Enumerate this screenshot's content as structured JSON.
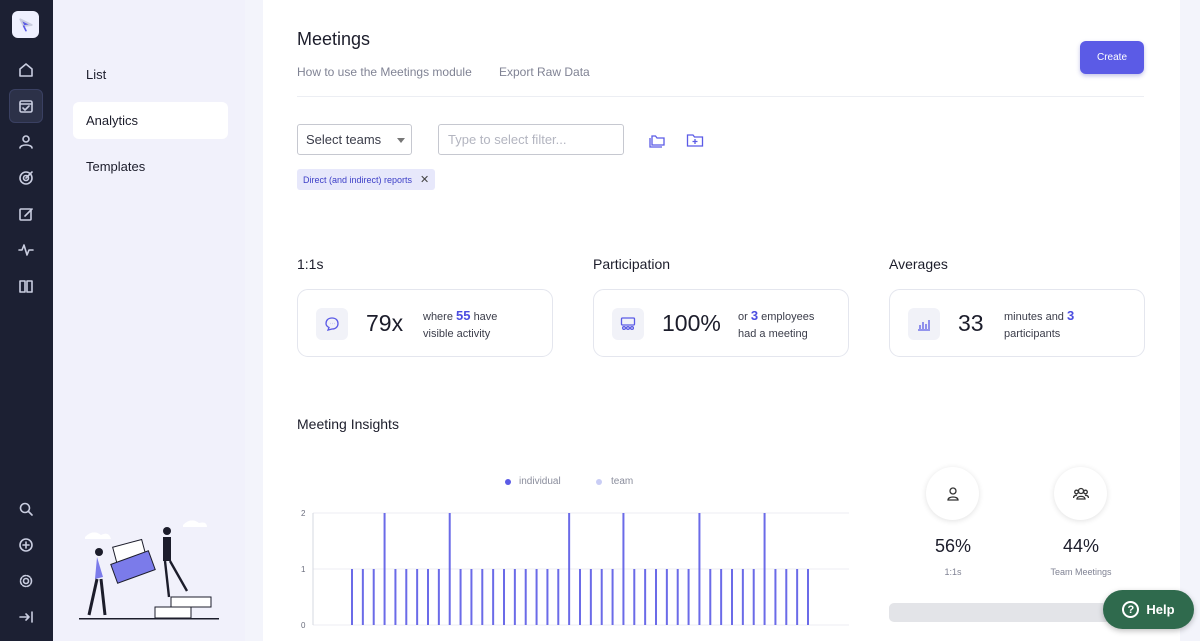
{
  "rail": {
    "items": [
      {
        "name": "home-icon"
      },
      {
        "name": "meetings-icon",
        "active": true
      },
      {
        "name": "people-icon"
      },
      {
        "name": "goals-icon"
      },
      {
        "name": "edit-icon"
      },
      {
        "name": "pulse-icon"
      },
      {
        "name": "book-icon"
      },
      {
        "name": "search-icon"
      },
      {
        "name": "add-icon"
      },
      {
        "name": "settings-icon"
      },
      {
        "name": "logout-icon"
      }
    ]
  },
  "subnav": {
    "items": [
      {
        "label": "List"
      },
      {
        "label": "Analytics",
        "active": true
      },
      {
        "label": "Templates"
      }
    ]
  },
  "header": {
    "title": "Meetings",
    "links": [
      "How to use the Meetings module",
      "Export Raw Data"
    ],
    "create_label": "Create"
  },
  "filters": {
    "select_teams": "Select teams",
    "filter_placeholder": "Type to select filter...",
    "chip_label": "Direct (and indirect) reports",
    "chip_close": "✕"
  },
  "stats": {
    "one_on_ones": {
      "title": "1:1s",
      "value": "79x",
      "pre": "where",
      "highlight": "55",
      "post": "have",
      "line2": "visible activity"
    },
    "participation": {
      "title": "Participation",
      "value": "100%",
      "pre": "or",
      "highlight": "3",
      "post": "employees",
      "line2": "had a meeting"
    },
    "averages": {
      "title": "Averages",
      "value": "33",
      "pre": "minutes and",
      "highlight": "3",
      "post": "",
      "line2": "participants"
    }
  },
  "insights": {
    "title": "Meeting Insights",
    "legend": [
      "individual",
      "team"
    ],
    "one_on_one_pct": "56%",
    "one_on_one_label": "1:1s",
    "team_pct": "44%",
    "team_label": "Team Meetings"
  },
  "chart_data": {
    "type": "bar",
    "ylim": [
      0,
      2
    ],
    "yticks": [
      "0",
      "1",
      "2"
    ],
    "series": [
      {
        "name": "individual",
        "values": [
          1,
          1,
          1,
          2,
          1,
          1,
          1,
          1,
          1,
          2,
          1,
          1,
          1,
          1,
          1,
          1,
          1,
          1,
          1,
          1,
          2,
          1,
          1,
          1,
          1,
          2,
          1,
          1,
          1,
          1,
          1,
          1,
          2,
          1,
          1,
          1,
          1,
          1,
          2,
          1,
          1,
          1,
          1
        ]
      },
      {
        "name": "team",
        "values": []
      }
    ],
    "colors": {
      "individual": "#6b6be8",
      "team": "#c9cdf5"
    }
  },
  "help": {
    "label": "Help"
  },
  "colors": {
    "accent": "#5b5be6",
    "help": "#2f6a4d"
  }
}
